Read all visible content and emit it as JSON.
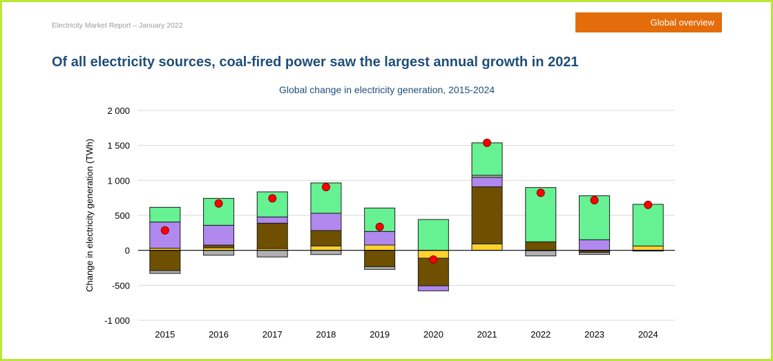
{
  "header": {
    "report_label": "Electricity Market Report – January 2022",
    "section_badge": "Global overview",
    "headline": "Of all electricity sources, coal-fired power saw the largest annual growth in 2021"
  },
  "chart_data": {
    "type": "bar",
    "stacked": true,
    "title": "Global change in electricity generation, 2015-2024",
    "xlabel": "",
    "ylabel": "Change in electricity generation (TWh)",
    "ylim": [
      -1000,
      2000
    ],
    "yticks": [
      -1000,
      -500,
      0,
      500,
      1000,
      1500,
      2000
    ],
    "ytick_labels": [
      "-1 000",
      "-500",
      "0",
      "500",
      "1 000",
      "1 500",
      "2 000"
    ],
    "grid": true,
    "legend": "none",
    "categories": [
      "2015",
      "2016",
      "2017",
      "2018",
      "2019",
      "2020",
      "2021",
      "2022",
      "2023",
      "2024"
    ],
    "series": [
      {
        "color": "#ffd22e",
        "values": [
          30,
          35,
          25,
          63,
          76,
          -112,
          92,
          -5,
          -5,
          62
        ]
      },
      {
        "color": "#6e5000",
        "values": [
          -290,
          40,
          363,
          220,
          -234,
          -395,
          816,
          122,
          -25,
          -10
        ]
      },
      {
        "color": "#b088ee",
        "values": [
          375,
          283,
          89,
          247,
          194,
          -72,
          135,
          0,
          151,
          0
        ]
      },
      {
        "color": "#b0b0b0",
        "values": [
          -40,
          -70,
          -95,
          -60,
          -39,
          0,
          30,
          -75,
          -29,
          0
        ]
      },
      {
        "color": "#66f292",
        "values": [
          210,
          385,
          359,
          434,
          335,
          441,
          464,
          776,
          629,
          596
        ]
      }
    ],
    "markers": {
      "type": "scatter",
      "color": "#ff0000",
      "values": [
        285,
        670,
        743,
        905,
        336,
        -131,
        1537,
        822,
        717,
        651
      ]
    }
  }
}
